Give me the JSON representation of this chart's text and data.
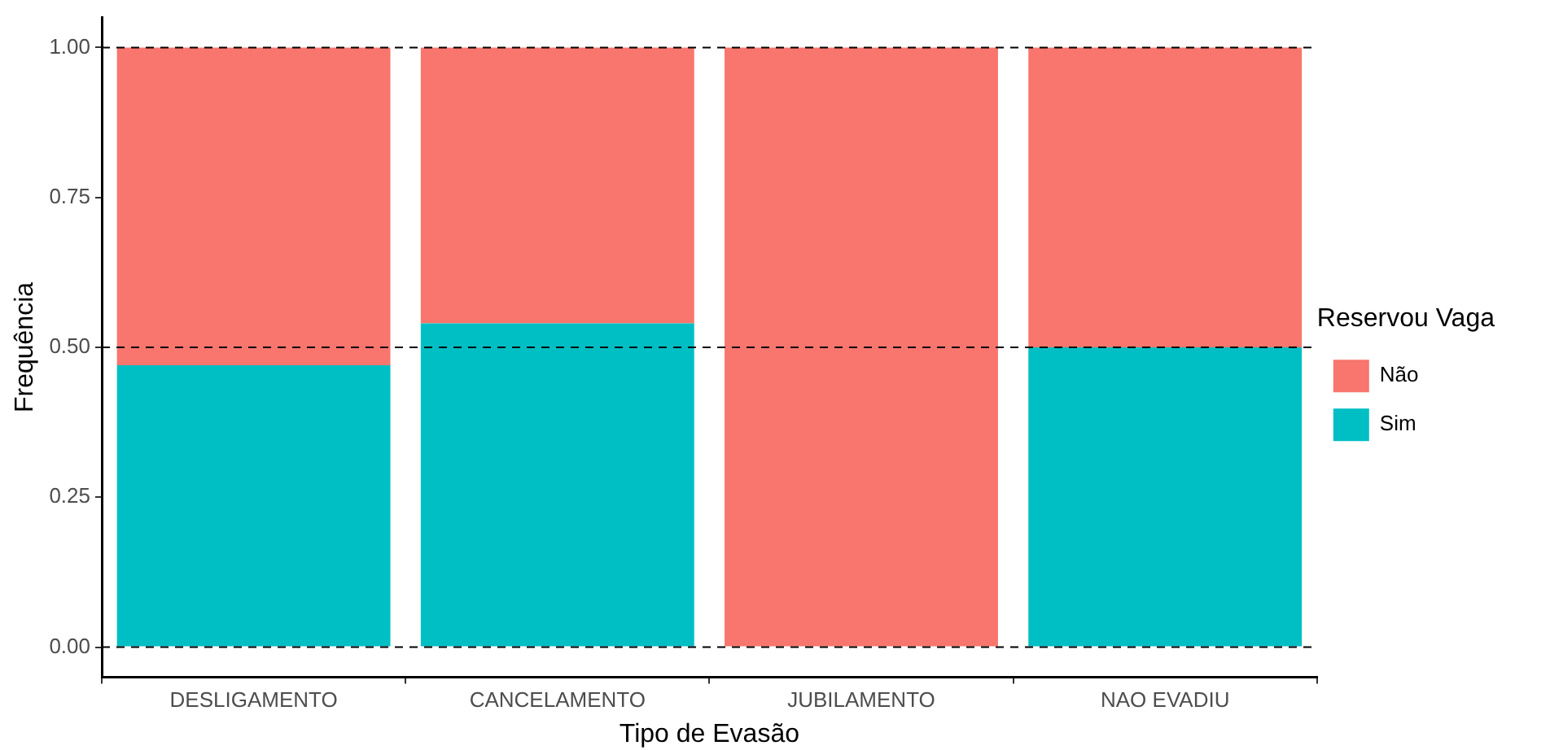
{
  "chart_data": {
    "type": "bar",
    "stacked": true,
    "xlabel": "Tipo de Evasão",
    "ylabel": "Frequência",
    "legend_title": "Reservou Vaga",
    "legend": "right",
    "grid": false,
    "categories": [
      "DESLIGAMENTO",
      "CANCELAMENTO",
      "JUBILAMENTO",
      "NAO EVADIU"
    ],
    "series": [
      {
        "name": "Sim",
        "color": "#00bfc4",
        "values": [
          0.47,
          0.54,
          0,
          0.5
        ]
      },
      {
        "name": "Não",
        "color": "#f8766d",
        "values": [
          0.53,
          0.46,
          1,
          0.5
        ]
      }
    ],
    "ylim": [
      -0.05,
      1.05
    ],
    "yticks": [
      {
        "value": 0,
        "label": "0.00"
      },
      {
        "value": 0.25,
        "label": "0.25"
      },
      {
        "value": 0.5,
        "label": "0.50"
      },
      {
        "value": 0.75,
        "label": "0.75"
      },
      {
        "value": 1,
        "label": "1.00"
      }
    ],
    "ref_lines": [
      {
        "axis": "y",
        "value": 0,
        "line_style": "dashed",
        "color": "#000000"
      },
      {
        "axis": "y",
        "value": 0.5,
        "line_style": "dashed",
        "color": "#000000"
      },
      {
        "axis": "y",
        "value": 1,
        "line_style": "dashed",
        "color": "#000000"
      }
    ]
  }
}
